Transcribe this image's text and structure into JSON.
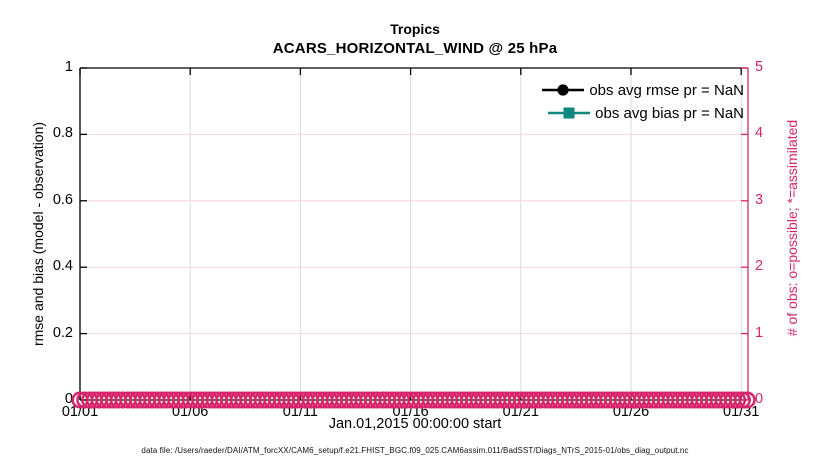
{
  "figure": {
    "title": "Tropics",
    "subtitle": "ACARS_HORIZONTAL_WIND @ 25 hPa",
    "xlabel": "Jan.01,2015 00:00:00 start",
    "ylabel_left": "rmse and bias (model - observation)",
    "ylabel_right": "# of obs: o=possible; *=assimilated",
    "caption": "data file: /Users/raeder/DAI/ATM_forcXX/CAM6_setup/f.e21.FHIST_BGC.f09_025.CAM6assim.011/BadSST/Diags_NTrS_2015-01/obs_diag_output.nc"
  },
  "colors": {
    "axis_black": "#000000",
    "obs_pink": "#d6256b",
    "grid_gray": "#d9d9d9",
    "grid_pink": "#f4d4df",
    "bias_teal": "#0e8780"
  },
  "legend": {
    "entries": [
      {
        "label": "obs avg rmse pr = NaN",
        "color": "#000000",
        "marker": "filled-circle"
      },
      {
        "label": "obs avg bias pr = NaN",
        "color": "#0e8780",
        "marker": "filled-square"
      }
    ]
  },
  "chart_data": {
    "type": "line",
    "title": "Tropics",
    "subtitle": "ACARS_HORIZONTAL_WIND @ 25 hPa",
    "xlabel": "Jan.01,2015 00:00:00 start",
    "ylabel_left": "rmse and bias (model - observation)",
    "ylabel_right": "# of obs: o=possible; *=assimilated",
    "x_ticks": [
      "01/01",
      "01/06",
      "01/11",
      "01/16",
      "01/21",
      "01/26",
      "01/31"
    ],
    "x_tick_interval_days": 5,
    "ylim_left": [
      0,
      1
    ],
    "yticks_left": [
      "0",
      "0.2",
      "0.4",
      "0.6",
      "0.8",
      "1"
    ],
    "ylim_right": [
      0,
      5
    ],
    "yticks_right": [
      "0",
      "1",
      "2",
      "3",
      "4",
      "5"
    ],
    "grid": true,
    "legend_position": "upper-right-inside",
    "series": [
      {
        "name": "obs avg rmse pr = NaN",
        "axis": "left",
        "marker": "filled-circle",
        "color": "#000000",
        "values": "NaN (no curve plotted)"
      },
      {
        "name": "obs avg bias pr = NaN",
        "axis": "left",
        "marker": "filled-square",
        "color": "#0e8780",
        "values": "NaN (no curve plotted)"
      },
      {
        "name": "# of obs possible (o)",
        "axis": "right",
        "marker": "open-circle",
        "color": "#d6256b",
        "constant_value": 0,
        "note": "dense band of overlapping o markers at 0 across entire x range"
      },
      {
        "name": "# of obs assimilated (*)",
        "axis": "right",
        "marker": "asterisk",
        "color": "#d6256b",
        "constant_value": 0
      }
    ]
  }
}
